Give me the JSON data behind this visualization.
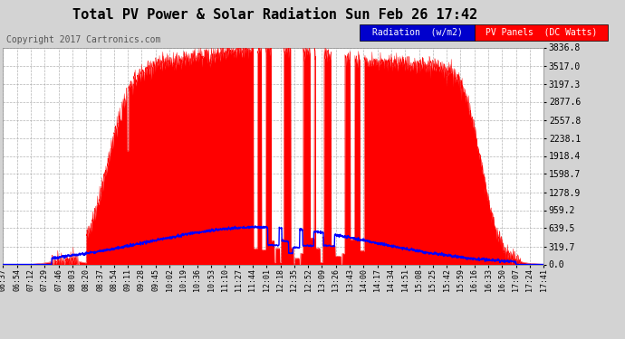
{
  "title": "Total PV Power & Solar Radiation Sun Feb 26 17:42",
  "copyright": "Copyright 2017 Cartronics.com",
  "yticks": [
    0.0,
    319.7,
    639.5,
    959.2,
    1278.9,
    1598.7,
    1918.4,
    2238.1,
    2557.8,
    2877.6,
    3197.3,
    3517.0,
    3836.8
  ],
  "ymax": 3836.8,
  "xtick_labels": [
    "06:37",
    "06:54",
    "07:12",
    "07:29",
    "07:46",
    "08:03",
    "08:20",
    "08:37",
    "08:54",
    "09:11",
    "09:28",
    "09:45",
    "10:02",
    "10:19",
    "10:36",
    "10:53",
    "11:10",
    "11:27",
    "11:44",
    "12:01",
    "12:18",
    "12:35",
    "12:52",
    "13:09",
    "13:26",
    "13:43",
    "14:00",
    "14:17",
    "14:34",
    "14:51",
    "15:08",
    "15:25",
    "15:42",
    "15:59",
    "16:16",
    "16:33",
    "16:50",
    "17:07",
    "17:24",
    "17:41"
  ],
  "background_color": "#d3d3d3",
  "plot_bg_color": "#ffffff",
  "grid_color": "#a0a0a0",
  "pv_color": "#ff0000",
  "radiation_color": "#0000ff",
  "title_color": "#000000",
  "legend_radiation_bg": "#0000cd",
  "legend_pv_bg": "#ff0000",
  "legend_radiation_text": "Radiation  (w/m2)",
  "legend_pv_text": "PV Panels  (DC Watts)"
}
